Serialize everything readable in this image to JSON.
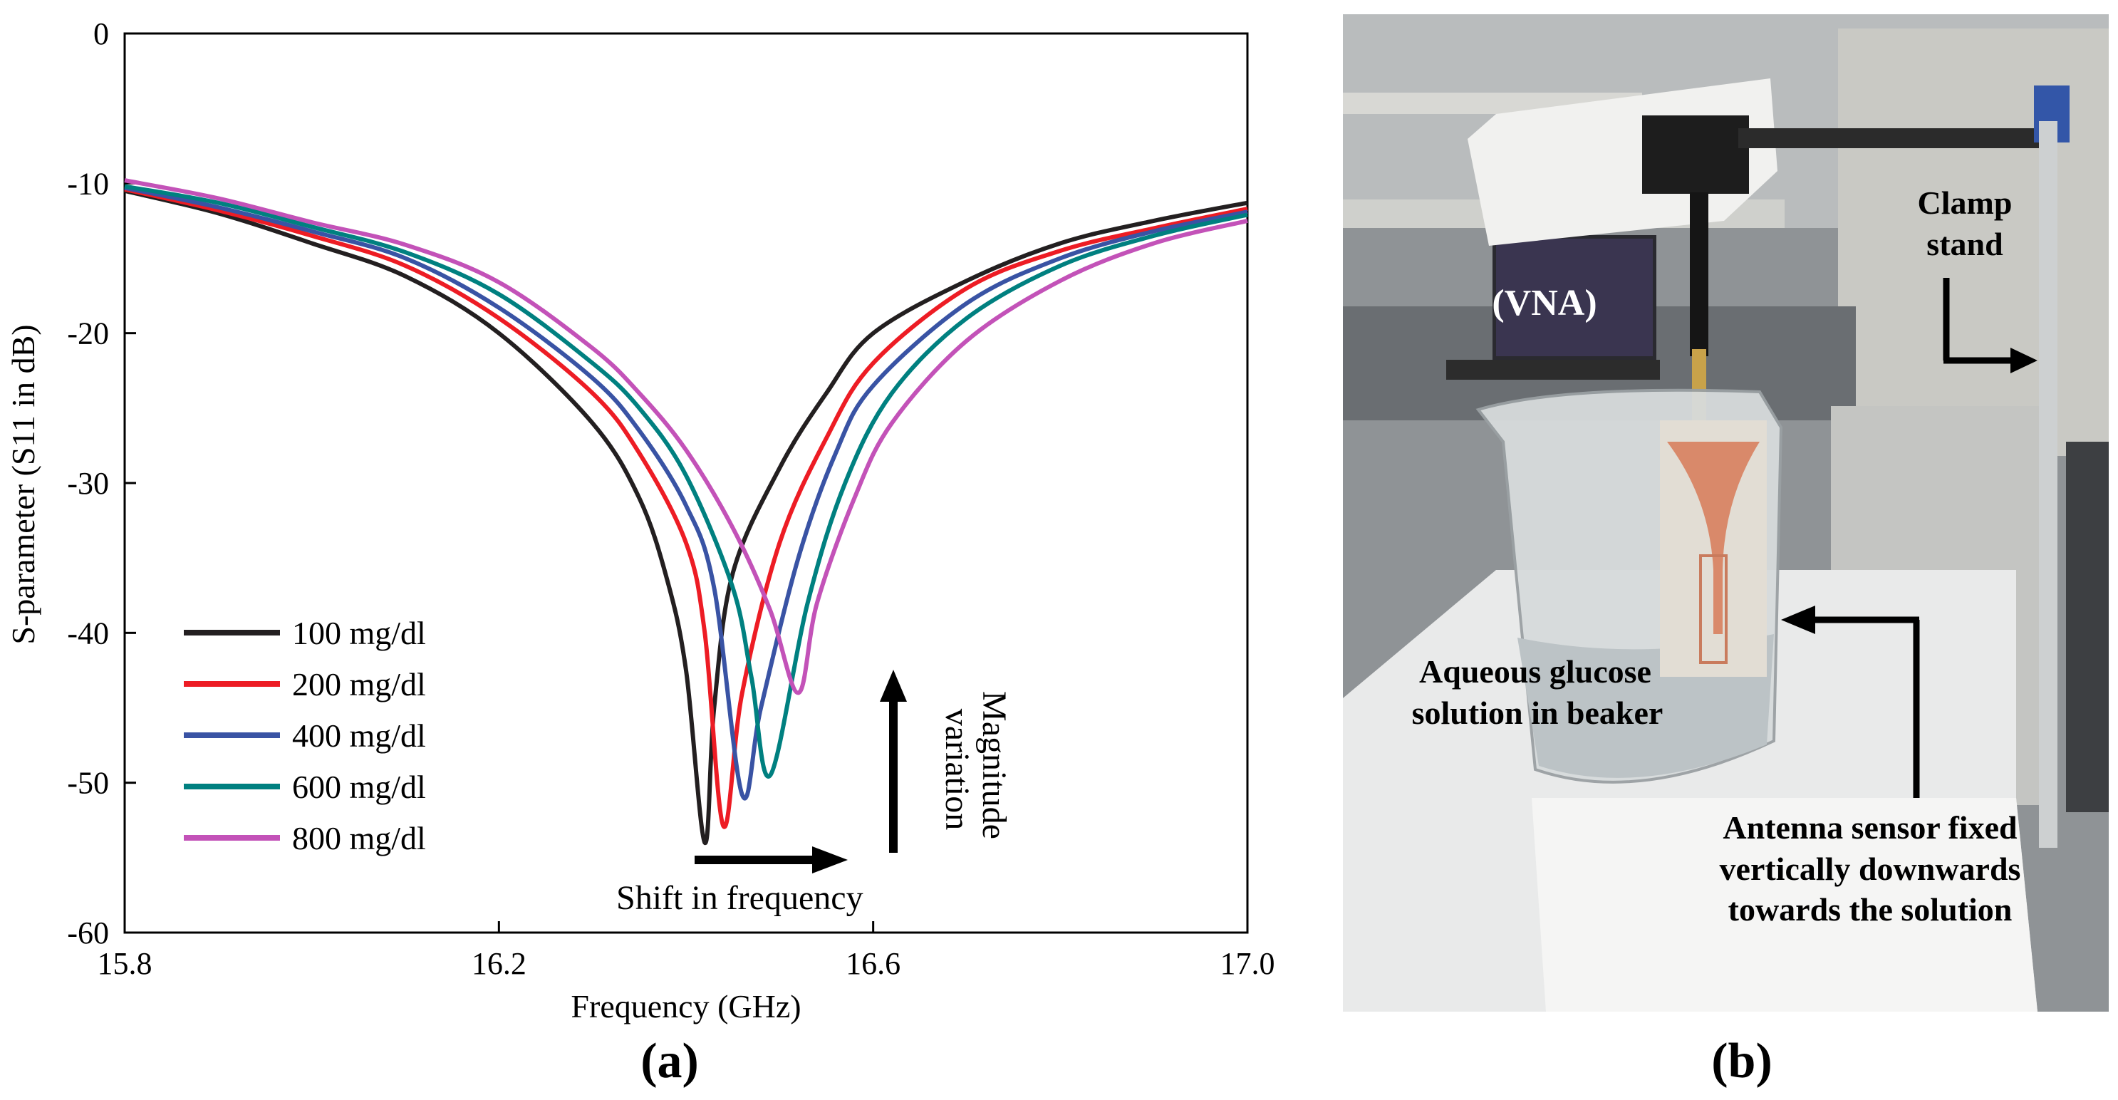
{
  "panel_a_label": "(a)",
  "panel_b_label": "(b)",
  "chart_data": {
    "type": "line",
    "title": "",
    "xlabel": "Frequency (GHz)",
    "ylabel": "S-parameter (S11 in dB)",
    "xlim": [
      15.8,
      17.0
    ],
    "ylim": [
      -60,
      0
    ],
    "xticks": [
      15.8,
      16.2,
      16.6,
      17.0
    ],
    "xtick_labels": [
      "15.8",
      "16.2",
      "16.6",
      "17.0"
    ],
    "yticks": [
      0,
      -10,
      -20,
      -30,
      -40,
      -50,
      -60
    ],
    "ytick_labels": [
      "0",
      "-10",
      "-20",
      "-30",
      "-40",
      "-50",
      "-60"
    ],
    "legend_position": "lower-left",
    "series": [
      {
        "name": "100 mg/dl",
        "color": "#231f20",
        "x": [
          15.8,
          15.9,
          16.0,
          16.1,
          16.2,
          16.3,
          16.35,
          16.38,
          16.4,
          16.42,
          16.43,
          16.45,
          16.5,
          16.55,
          16.6,
          16.7,
          16.8,
          16.9,
          17.0
        ],
        "y": [
          -10.5,
          -12.0,
          -14.0,
          -16.2,
          -20.0,
          -26.0,
          -31.0,
          -36.5,
          -42.5,
          -54.0,
          -45.0,
          -36.0,
          -29.0,
          -24.0,
          -20.0,
          -16.5,
          -14.0,
          -12.5,
          -11.3
        ]
      },
      {
        "name": "200 mg/dl",
        "color": "#ed1c24",
        "x": [
          15.8,
          15.9,
          16.0,
          16.1,
          16.2,
          16.3,
          16.35,
          16.4,
          16.42,
          16.44,
          16.46,
          16.5,
          16.55,
          16.6,
          16.7,
          16.8,
          16.9,
          17.0
        ],
        "y": [
          -10.4,
          -11.8,
          -13.5,
          -15.5,
          -19.0,
          -24.0,
          -28.0,
          -34.0,
          -40.0,
          -52.9,
          -44.0,
          -34.0,
          -27.0,
          -22.0,
          -17.0,
          -14.5,
          -13.0,
          -11.7
        ]
      },
      {
        "name": "400 mg/dl",
        "color": "#3953a4",
        "x": [
          15.8,
          15.9,
          16.0,
          16.1,
          16.2,
          16.3,
          16.35,
          16.4,
          16.43,
          16.46,
          16.48,
          16.52,
          16.56,
          16.6,
          16.7,
          16.8,
          16.9,
          17.0
        ],
        "y": [
          -10.3,
          -11.6,
          -13.2,
          -15.0,
          -18.3,
          -23.0,
          -26.5,
          -31.5,
          -37.0,
          -50.8,
          -45.0,
          -35.0,
          -28.0,
          -23.5,
          -18.0,
          -15.0,
          -13.2,
          -11.9
        ]
      },
      {
        "name": "600 mg/dl",
        "color": "#008080",
        "x": [
          15.8,
          15.9,
          16.0,
          16.1,
          16.2,
          16.3,
          16.35,
          16.4,
          16.45,
          16.47,
          16.49,
          16.53,
          16.57,
          16.62,
          16.7,
          16.8,
          16.9,
          17.0
        ],
        "y": [
          -10.2,
          -11.3,
          -12.9,
          -14.6,
          -17.4,
          -22.0,
          -25.0,
          -29.5,
          -37.0,
          -43.0,
          -49.5,
          -38.0,
          -30.0,
          -24.0,
          -19.0,
          -15.5,
          -13.5,
          -12.1
        ]
      },
      {
        "name": "800 mg/dl",
        "color": "#c352b8",
        "x": [
          15.8,
          15.9,
          16.0,
          16.1,
          16.2,
          16.3,
          16.35,
          16.4,
          16.45,
          16.49,
          16.52,
          16.54,
          16.58,
          16.62,
          16.7,
          16.8,
          16.9,
          17.0
        ],
        "y": [
          -9.8,
          -11.0,
          -12.6,
          -14.1,
          -16.6,
          -21.0,
          -24.0,
          -27.8,
          -33.0,
          -38.5,
          -44.0,
          -38.0,
          -31.0,
          -26.0,
          -20.5,
          -16.5,
          -14.0,
          -12.5
        ]
      }
    ],
    "annotations": [
      "Shift in frequency",
      "Magnitude variation"
    ]
  },
  "photo": {
    "labels": {
      "vna": "(VNA)",
      "clamp_line1": "Clamp",
      "clamp_line2": "stand",
      "glucose_line1": "Aqueous glucose",
      "glucose_line2": "solution in beaker",
      "antenna_line1": "Antenna sensor fixed",
      "antenna_line2": "vertically downwards",
      "antenna_line3": "towards the solution"
    }
  }
}
